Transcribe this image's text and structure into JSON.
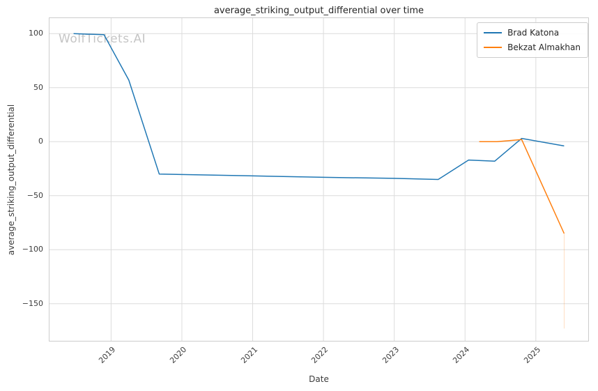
{
  "watermark": "WolfTickets.AI",
  "chart_data": {
    "type": "line",
    "title": "average_striking_output_differential over time",
    "xlabel": "Date",
    "ylabel": "average_striking_output_differential",
    "grid": true,
    "legend_position": "upper right",
    "xlim": [
      2018.12,
      2025.75
    ],
    "ylim": [
      -185,
      115
    ],
    "x_tick_values": [
      2019,
      2020,
      2021,
      2022,
      2023,
      2024,
      2025
    ],
    "x_tick_labels": [
      "2019",
      "2020",
      "2021",
      "2022",
      "2023",
      "2024",
      "2025"
    ],
    "y_tick_values": [
      100,
      50,
      0,
      -50,
      -100,
      -150
    ],
    "y_tick_labels": [
      "100",
      "50",
      "0",
      "−50",
      "−100",
      "−150"
    ],
    "series": [
      {
        "name": "Brad Katona",
        "color": "#1f77b4",
        "points": [
          [
            2018.47,
            100
          ],
          [
            2018.9,
            99
          ],
          [
            2019.25,
            57
          ],
          [
            2019.68,
            -30
          ],
          [
            2020.9,
            -31.5
          ],
          [
            2022.0,
            -33
          ],
          [
            2023.0,
            -34
          ],
          [
            2023.62,
            -35
          ],
          [
            2024.05,
            -17
          ],
          [
            2024.42,
            -18
          ],
          [
            2024.8,
            3
          ],
          [
            2025.4,
            -4
          ]
        ]
      },
      {
        "name": "Bekzat Almakhan",
        "color": "#ff7f0e",
        "points": [
          [
            2024.2,
            0
          ],
          [
            2024.45,
            0
          ],
          [
            2024.8,
            2
          ],
          [
            2025.4,
            -85
          ]
        ],
        "error_bar": {
          "x": 2025.4,
          "from": -85,
          "to": -173
        }
      }
    ]
  }
}
